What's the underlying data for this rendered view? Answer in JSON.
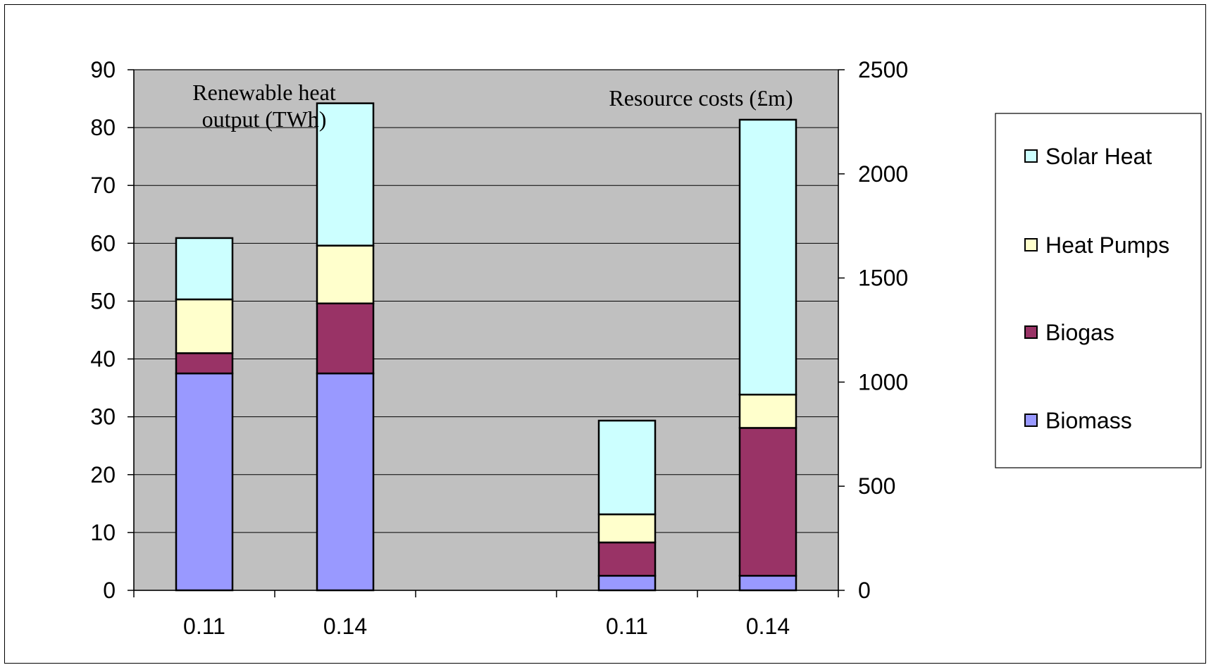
{
  "chart_data": {
    "type": "bar",
    "stacked": true,
    "groups": [
      {
        "annotation": [
          "Renewable heat",
          "output (TWh)"
        ],
        "axis": "left",
        "ylim": [
          0,
          90
        ],
        "yticks": [
          0,
          10,
          20,
          30,
          40,
          50,
          60,
          70,
          80,
          90
        ],
        "categories": [
          "0.11",
          "0.14"
        ],
        "series": [
          {
            "name": "Biomass",
            "values": [
              37.5,
              37.5
            ]
          },
          {
            "name": "Biogas",
            "values": [
              3.5,
              12.1
            ]
          },
          {
            "name": "Heat Pumps",
            "values": [
              9.3,
              10.0
            ]
          },
          {
            "name": "Solar Heat",
            "values": [
              10.6,
              24.6
            ]
          }
        ]
      },
      {
        "annotation": [
          "Resource costs (£m)"
        ],
        "axis": "right",
        "ylim": [
          0,
          2500
        ],
        "yticks": [
          0,
          500,
          1000,
          1500,
          2000,
          2500
        ],
        "categories": [
          "0.11",
          "0.14"
        ],
        "series": [
          {
            "name": "Biomass",
            "values": [
              70,
              70
            ]
          },
          {
            "name": "Biogas",
            "values": [
              160,
              710
            ]
          },
          {
            "name": "Heat Pumps",
            "values": [
              135,
              160
            ]
          },
          {
            "name": "Solar Heat",
            "values": [
              450,
              1320
            ]
          }
        ]
      }
    ],
    "legend": {
      "position": "right",
      "items": [
        "Solar Heat",
        "Heat Pumps",
        "Biogas",
        "Biomass"
      ]
    },
    "colors": {
      "Biomass": "#9999ff",
      "Biogas": "#993366",
      "Heat Pumps": "#ffffcc",
      "Solar Heat": "#ccffff",
      "plot_bg": "#c0c0c0"
    },
    "grid": true
  }
}
